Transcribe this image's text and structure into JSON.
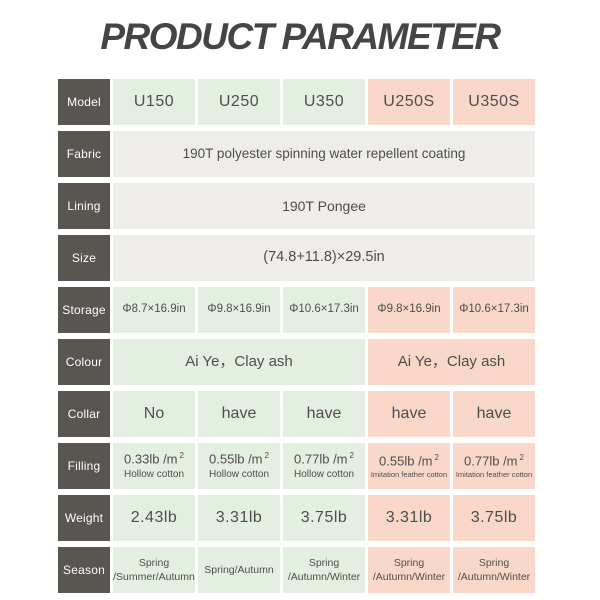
{
  "title": "PRODUCT PARAMETER",
  "colors": {
    "label_bg": "#595550",
    "green_bg": "#e3efe0",
    "pink_bg": "#f9d8c9",
    "gray_bg": "#eeedea",
    "text": "#4f4e4d",
    "title_text": "#454545"
  },
  "table": {
    "model": {
      "label": "Model",
      "cells": [
        "U150",
        "U250",
        "U350",
        "U250S",
        "U350S"
      ]
    },
    "fabric": {
      "label": "Fabric",
      "value": "190T polyester spinning water repellent coating"
    },
    "lining": {
      "label": "Lining",
      "value": "190T Pongee"
    },
    "size": {
      "label": "Size",
      "value": "(74.8+11.8)×29.5in"
    },
    "storage": {
      "label": "Storage",
      "cells": [
        "Φ8.7×16.9in",
        "Φ9.8×16.9in",
        "Φ10.6×17.3in",
        "Φ9.8×16.9in",
        "Φ10.6×17.3in"
      ]
    },
    "colour": {
      "label": "Colour",
      "green_value": "Ai Ye，Clay ash",
      "pink_value": "Ai Ye，Clay ash"
    },
    "collar": {
      "label": "Collar",
      "cells": [
        "No",
        "have",
        "have",
        "have",
        "have"
      ]
    },
    "filling": {
      "label": "Filling",
      "cells": [
        {
          "value": "0.33lb /m",
          "sup": "2",
          "note": "Hollow cotton"
        },
        {
          "value": "0.55lb /m",
          "sup": "2",
          "note": "Hollow cotton"
        },
        {
          "value": "0.77lb /m",
          "sup": "2",
          "note": "Hollow cotton"
        },
        {
          "value": "0.55lb /m",
          "sup": "2",
          "note": "Imitation feather cotton"
        },
        {
          "value": "0.77lb /m",
          "sup": "2",
          "note": "Imitation feather cotton"
        }
      ]
    },
    "weight": {
      "label": "Weight",
      "cells": [
        "2.43lb",
        "3.31lb",
        "3.75lb",
        "3.31lb",
        "3.75lb"
      ]
    },
    "season": {
      "label": "Season",
      "cells": [
        "Spring\n/Summer/Autumn",
        "Spring/Autumn",
        "Spring\n/Autumn/Winter",
        "Spring\n/Autumn/Winter",
        "Spring\n/Autumn/Winter"
      ]
    }
  }
}
